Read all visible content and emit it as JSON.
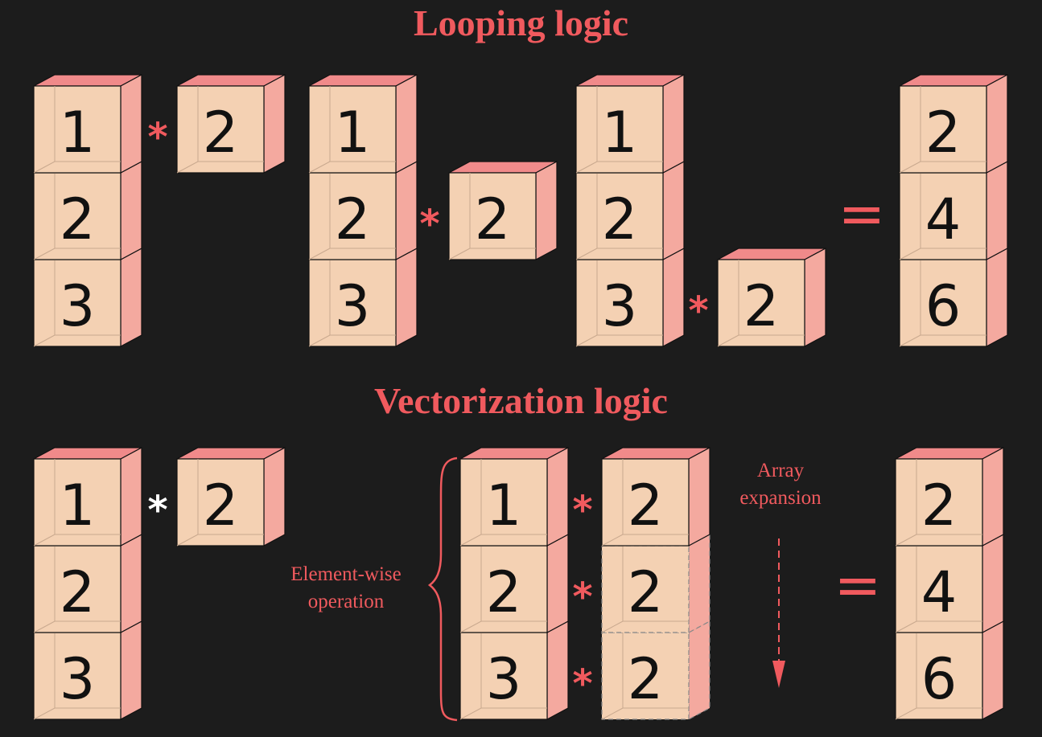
{
  "looping": {
    "title": "Looping logic",
    "steps": [
      {
        "vector": [
          "1",
          "2",
          "3"
        ],
        "scalar": "2",
        "multiplies_row": 0
      },
      {
        "vector": [
          "1",
          "2",
          "3"
        ],
        "scalar": "2",
        "multiplies_row": 1
      },
      {
        "vector": [
          "1",
          "2",
          "3"
        ],
        "scalar": "2",
        "multiplies_row": 2
      }
    ],
    "equals": "=",
    "result": [
      "2",
      "4",
      "6"
    ]
  },
  "vectorization": {
    "title": "Vectorization logic",
    "vector": [
      "1",
      "2",
      "3"
    ],
    "scalar": "2",
    "elementwise_label": [
      "Element-wise",
      "operation"
    ],
    "expanded_vector": [
      "1",
      "2",
      "3"
    ],
    "expanded_scalar": [
      "2",
      "2",
      "2"
    ],
    "expansion_label": [
      "Array",
      "expansion"
    ],
    "equals": "=",
    "result": [
      "2",
      "4",
      "6"
    ]
  },
  "operator": "*",
  "colors": {
    "background": "#1c1c1c",
    "accent": "#f05a5e",
    "cube_front": "#f4d1b3",
    "cube_top": "#f08a8a",
    "cube_side": "#f4a99f",
    "operator_white": "#ffffff",
    "digit": "#111111"
  }
}
